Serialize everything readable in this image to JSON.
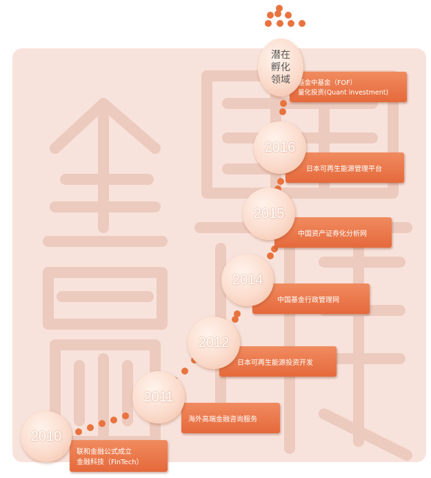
{
  "watermark": {
    "color": "#f3d6cd"
  },
  "accent_color": "#e9733e",
  "milestones": [
    {
      "year": "2010",
      "lines": [
        "联和金融公式成立",
        "金融科技（FinTech）"
      ]
    },
    {
      "year": "2011",
      "lines": [
        "海外高端金融咨询服务"
      ]
    },
    {
      "year": "2012",
      "lines": [
        "日本可再生能源投资开发"
      ]
    },
    {
      "year": "2014",
      "lines": [
        "中国基金行政管理网"
      ]
    },
    {
      "year": "2015",
      "lines": [
        "中国资产证券化分析网"
      ]
    },
    {
      "year": "2016",
      "lines": [
        "日本可再生能源管理平台"
      ]
    }
  ],
  "future": {
    "label_lines": [
      "潜在",
      "孵化",
      "领域"
    ],
    "lines": [
      "基金中基金（FOF）",
      "量化投资(Quant investment)"
    ]
  }
}
